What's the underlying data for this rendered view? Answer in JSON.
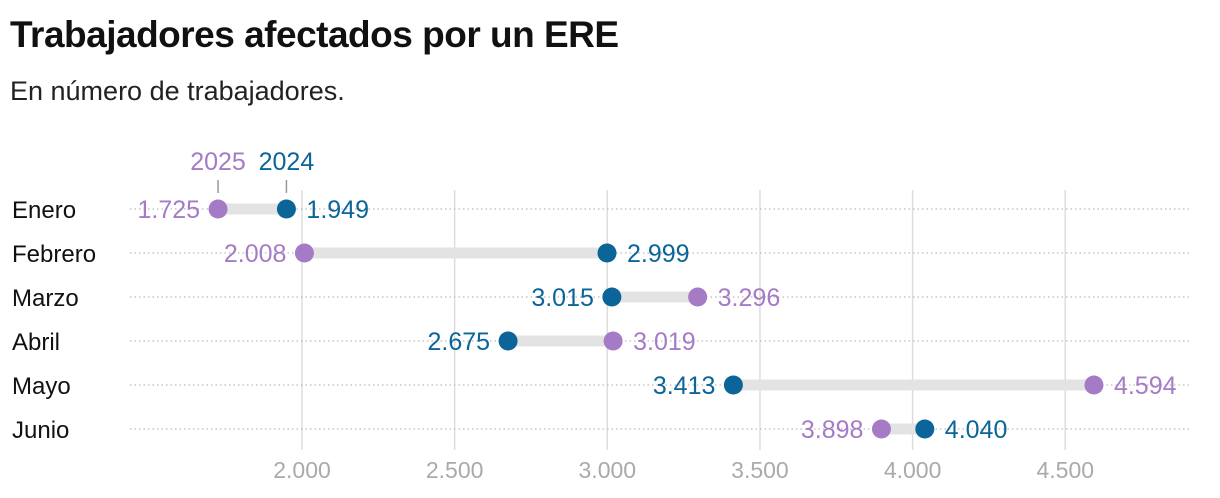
{
  "chart_data": {
    "type": "dumbbell",
    "title": "Trabajadores afectados por un ERE",
    "subtitle": "En número de trabajadores.",
    "categories": [
      "Enero",
      "Febrero",
      "Marzo",
      "Abril",
      "Mayo",
      "Junio"
    ],
    "series": [
      {
        "name": "2025",
        "color": "#a57bc6",
        "values": [
          1725,
          2008,
          3296,
          3019,
          4594,
          3898
        ],
        "labels": [
          "1.725",
          "2.008",
          "3.296",
          "3.019",
          "4.594",
          "3.898"
        ]
      },
      {
        "name": "2024",
        "color": "#0b6598",
        "values": [
          1949,
          2999,
          3015,
          2675,
          3413,
          4040
        ],
        "labels": [
          "1.949",
          "2.999",
          "3.015",
          "2.675",
          "3.413",
          "4.040"
        ]
      }
    ],
    "xticks": [
      2000,
      2500,
      3000,
      3500,
      4000,
      4500
    ],
    "xtick_labels": [
      "2.000",
      "2.500",
      "3.000",
      "3.500",
      "4.000",
      "4.500"
    ],
    "grid": true,
    "legend": "top, above first row"
  }
}
